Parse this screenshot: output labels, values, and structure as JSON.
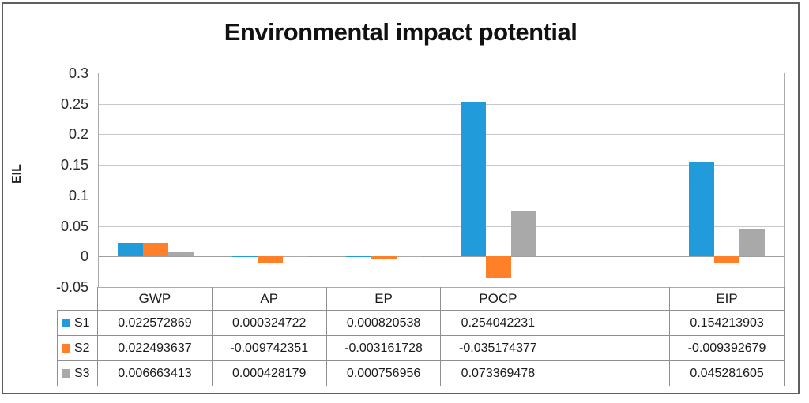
{
  "chart_data": {
    "type": "bar",
    "title": "Environmental impact potential",
    "xlabel": "",
    "ylabel": "EIL",
    "ylim": [
      -0.05,
      0.3
    ],
    "ytick_step": 0.05,
    "yticks": [
      "0.3",
      "0.25",
      "0.2",
      "0.15",
      "0.1",
      "0.05",
      "0",
      "-0.05"
    ],
    "grid": true,
    "legend_position": "data-table-left",
    "categories": [
      "GWP",
      "AP",
      "EP",
      "POCP",
      "",
      "EIP"
    ],
    "series": [
      {
        "name": "S1",
        "color": "#219bd9",
        "values": [
          0.022572869,
          0.000324722,
          0.000820538,
          0.254042231,
          null,
          0.154213903
        ]
      },
      {
        "name": "S2",
        "color": "#ff8028",
        "values": [
          0.022493637,
          -0.009742351,
          -0.003161728,
          -0.035174377,
          null,
          -0.009392679
        ]
      },
      {
        "name": "S3",
        "color": "#a9a9a9",
        "values": [
          0.006663413,
          0.000428179,
          0.000756956,
          0.073369478,
          null,
          0.045281605
        ]
      }
    ],
    "data_table": {
      "columns": [
        "GWP",
        "AP",
        "EP",
        "POCP",
        "",
        "EIP"
      ],
      "rows": [
        {
          "name": "S1",
          "cells": [
            "0.022572869",
            "0.000324722",
            "0.000820538",
            "0.254042231",
            "",
            "0.154213903"
          ]
        },
        {
          "name": "S2",
          "cells": [
            "0.022493637",
            "-0.009742351",
            "-0.003161728",
            "-0.035174377",
            "",
            "-0.009392679"
          ]
        },
        {
          "name": "S3",
          "cells": [
            "0.006663413",
            "0.000428179",
            "0.000756956",
            "0.073369478",
            "",
            "0.045281605"
          ]
        }
      ]
    },
    "colors": {
      "series_blue": "#219bd9",
      "series_orange": "#ff8028",
      "series_gray": "#a9a9a9",
      "gridline": "#c8c8c8",
      "axis_line": "#9e9e9e",
      "table_border": "#8f8f8f",
      "frame_border": "#5f5f5f",
      "text": "#1a1a1a"
    }
  }
}
